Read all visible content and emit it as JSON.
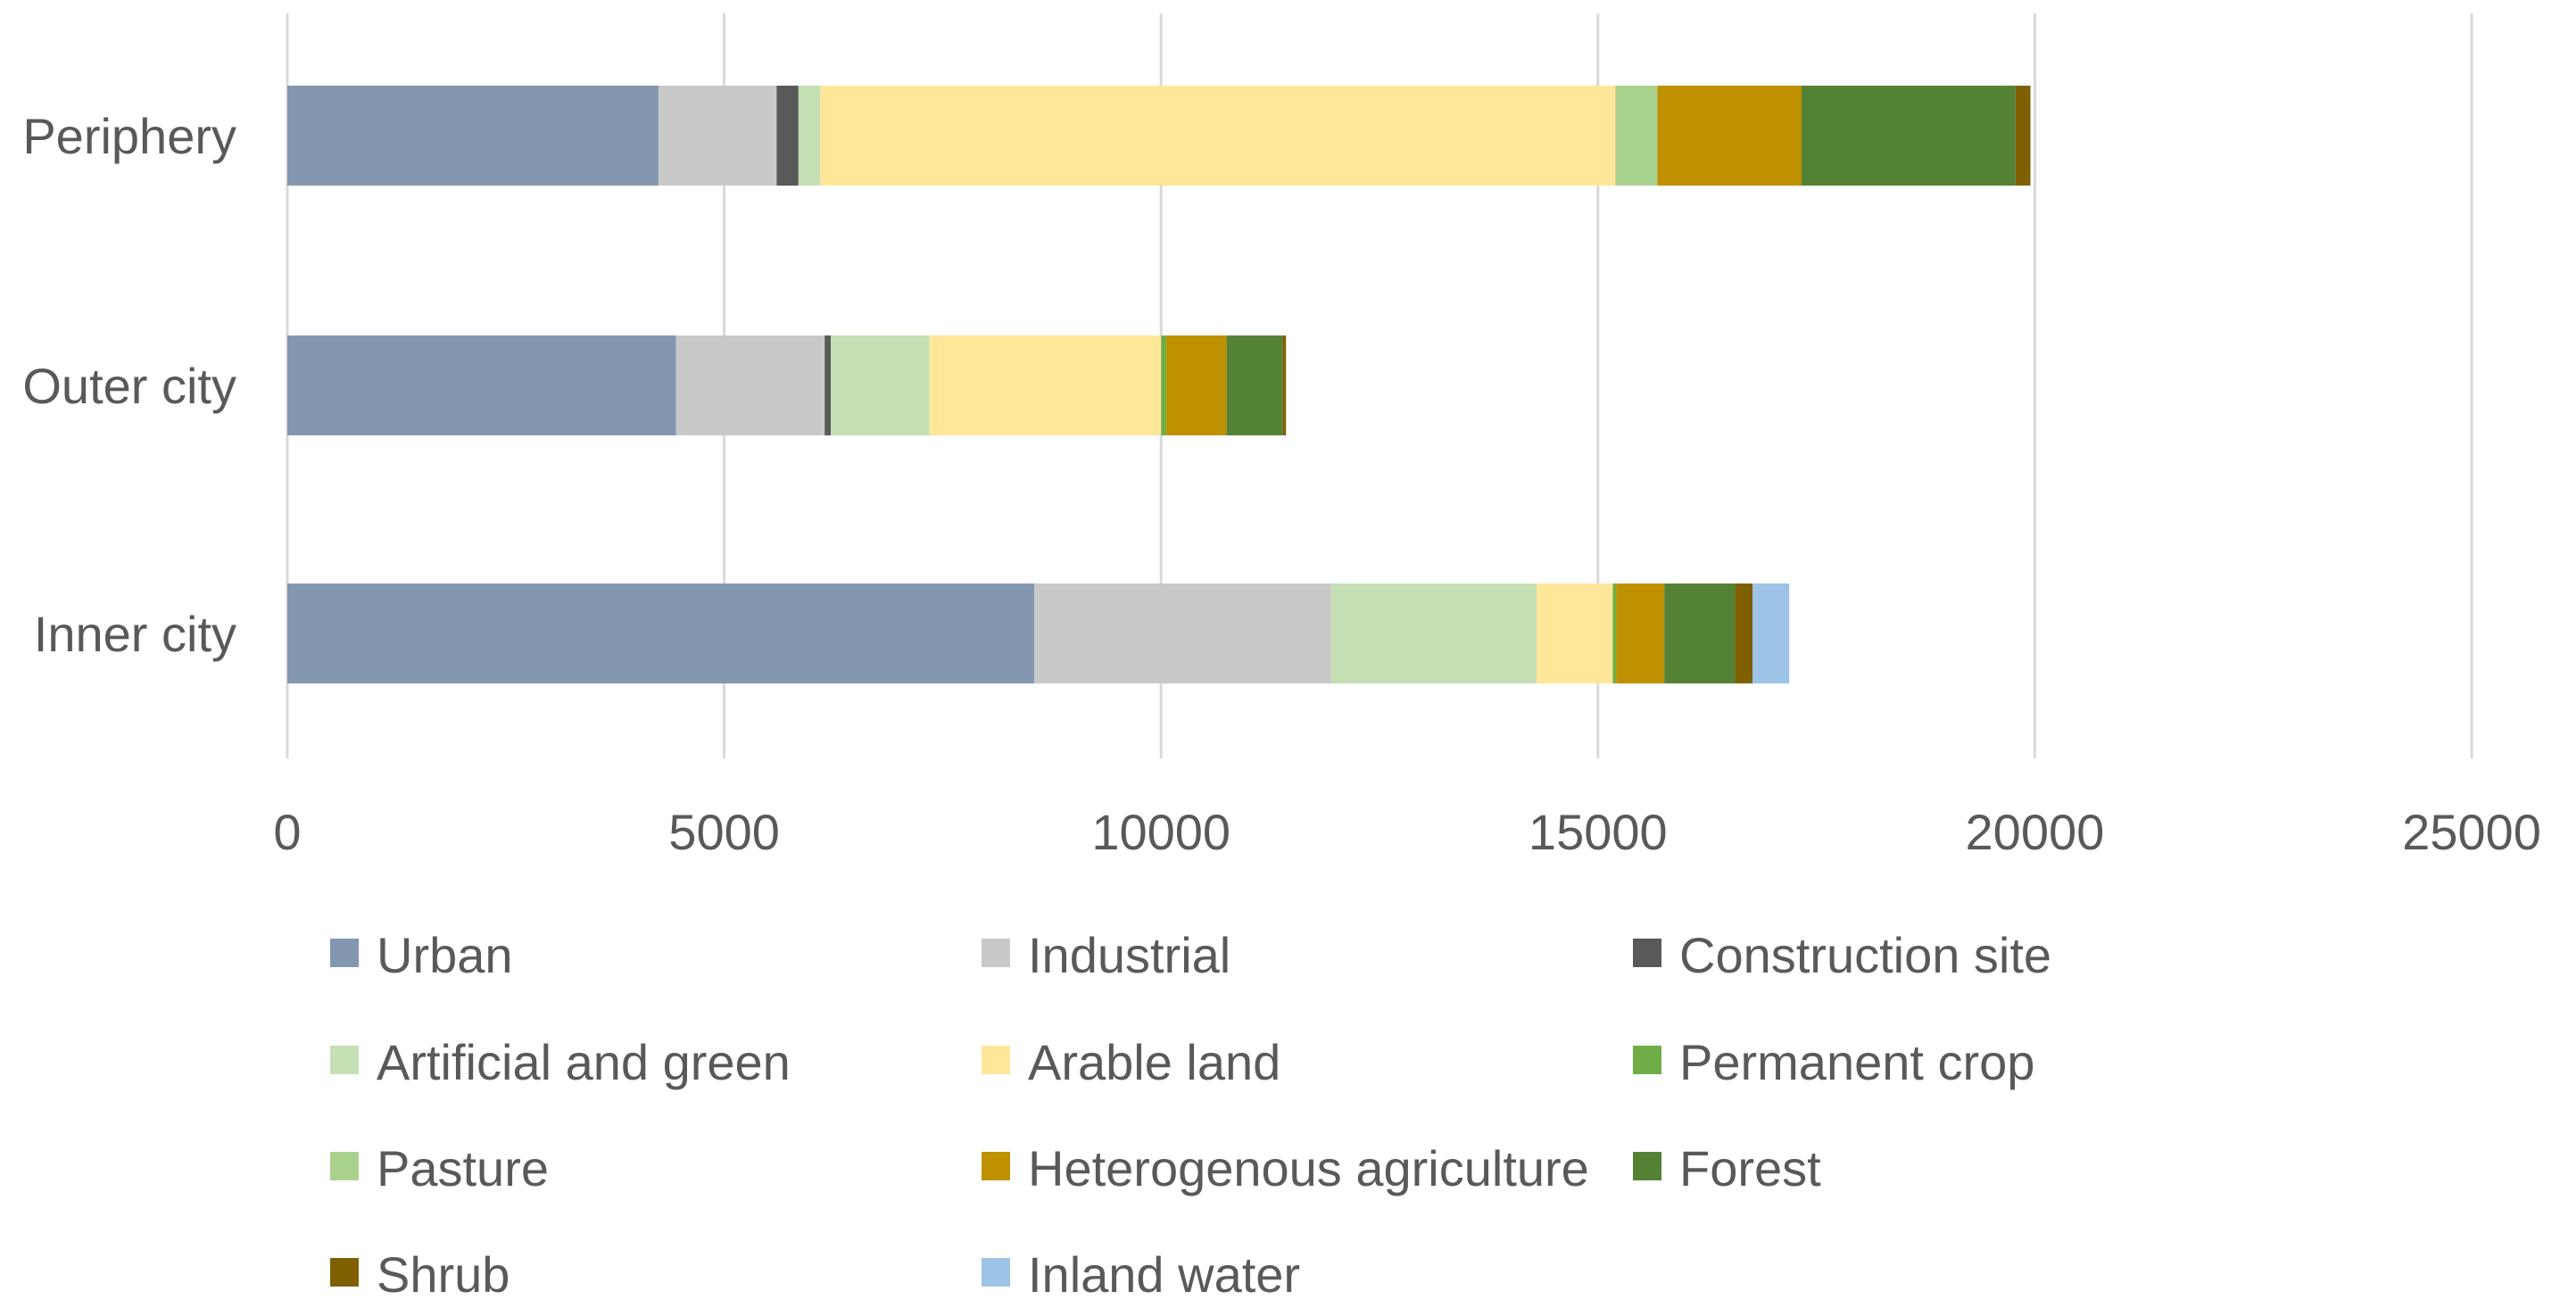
{
  "chart_data": {
    "type": "bar",
    "orientation": "horizontal",
    "stacked": true,
    "title": "",
    "xlabel": "",
    "ylabel": "",
    "xlim": [
      0,
      25000
    ],
    "xticks": [
      0,
      5000,
      10000,
      15000,
      20000,
      25000
    ],
    "xtick_labels": [
      "0",
      "5000",
      "10000",
      "15000",
      "20000",
      "25000"
    ],
    "grid": "vertical",
    "legend_position": "bottom",
    "categories": [
      "Periphery",
      "Outer city",
      "Inner city"
    ],
    "series": [
      {
        "name": "Urban",
        "color": "#8497B0",
        "values": [
          4250,
          4450,
          8550
        ]
      },
      {
        "name": "Industrial",
        "color": "#C9C9C9",
        "values": [
          1350,
          1700,
          3400
        ]
      },
      {
        "name": "Construction site",
        "color": "#595959",
        "values": [
          250,
          70,
          0
        ]
      },
      {
        "name": "Artificial and green",
        "color": "#C5E0B4",
        "values": [
          250,
          1130,
          2350
        ]
      },
      {
        "name": "Arable land",
        "color": "#FFE699",
        "values": [
          9100,
          2650,
          870
        ]
      },
      {
        "name": "Permanent crop",
        "color": "#70AD47",
        "values": [
          0,
          60,
          40
        ]
      },
      {
        "name": "Pasture",
        "color": "#A9D18E",
        "values": [
          480,
          0,
          0
        ]
      },
      {
        "name": "Heterogenous agriculture",
        "color": "#BF9000",
        "values": [
          1650,
          690,
          550
        ]
      },
      {
        "name": "Forest",
        "color": "#548235",
        "values": [
          2450,
          640,
          810
        ]
      },
      {
        "name": "Shrub",
        "color": "#7F6000",
        "values": [
          170,
          40,
          200
        ]
      },
      {
        "name": "Inland water",
        "color": "#9DC3E6",
        "values": [
          0,
          0,
          420
        ]
      }
    ]
  }
}
